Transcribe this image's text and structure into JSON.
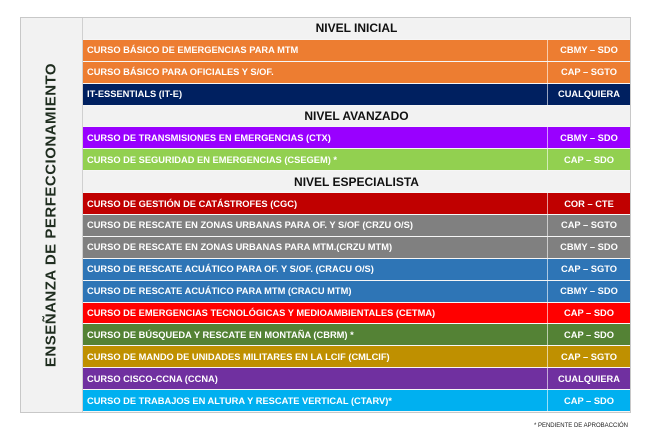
{
  "side_title": "ENSEÑANZA DE PERFECCIONAMIENTO",
  "sections": [
    {
      "title": "NIVEL INICIAL",
      "courses": [
        {
          "name": "CURSO BÁSICO DE EMERGENCIAS PARA MTM",
          "rank": "CBMY – SDO",
          "color": "#ED7D31"
        },
        {
          "name": "CURSO BÁSICO PARA OFICIALES Y S/OF.",
          "rank": "CAP – SGTO",
          "color": "#ED7D31"
        },
        {
          "name": "IT-ESSENTIALS (IT-E)",
          "rank": "CUALQUIERA",
          "color": "#002060"
        }
      ]
    },
    {
      "title": "NIVEL AVANZADO",
      "courses": [
        {
          "name": "CURSO DE TRANSMISIONES EN EMERGENCIAS (CTX)",
          "rank": "CBMY – SDO",
          "color": "#9900FF"
        },
        {
          "name": "CURSO DE SEGURIDAD EN EMERGENCIAS (CSEGEM) *",
          "rank": "CAP – SDO",
          "color": "#92D050"
        }
      ]
    },
    {
      "title": "NIVEL ESPECIALISTA",
      "courses": [
        {
          "name": "CURSO DE GESTIÓN DE CATÁSTROFES (CGC)",
          "rank": "COR – CTE",
          "color": "#C00000"
        },
        {
          "name": "CURSO DE RESCATE EN ZONAS URBANAS PARA OF. Y S/OF (CRZU O/S)",
          "rank": "CAP – SGTO",
          "color": "#808080"
        },
        {
          "name": "CURSO DE RESCATE EN ZONAS URBANAS PARA MTM.(CRZU MTM)",
          "rank": "CBMY – SDO",
          "color": "#808080"
        },
        {
          "name": "CURSO DE RESCATE ACUÁTICO PARA OF. Y S/OF. (CRACU  O/S)",
          "rank": "CAP – SGTO",
          "color": "#2E75B6"
        },
        {
          "name": "CURSO DE RESCATE ACUÁTICO PARA MTM (CRACU  MTM)",
          "rank": "CBMY – SDO",
          "color": "#2E75B6"
        },
        {
          "name": "CURSO DE EMERGENCIAS TECNOLÓGICAS Y MEDIOAMBIENTALES (CETMA)",
          "rank": "CAP – SDO",
          "color": "#FF0000"
        },
        {
          "name": "CURSO DE BÚSQUEDA Y RESCATE EN MONTAÑA (CBRM) *",
          "rank": "CAP – SDO",
          "color": "#548235"
        },
        {
          "name": "CURSO DE MANDO DE UNIDADES MILITARES EN LA LCIF (CMLCIF)",
          "rank": "CAP – SGTO",
          "color": "#BF9000"
        },
        {
          "name": "CURSO CISCO-CCNA (CCNA)",
          "rank": "CUALQUIERA",
          "color": "#7030A0"
        },
        {
          "name": "CURSO DE TRABAJOS EN ALTURA Y RESCATE VERTICAL  (CTARV)*",
          "rank": "CAP – SDO",
          "color": "#00B0F0"
        }
      ]
    }
  ],
  "footnote": "* PENDIENTE DE APROBACCIÓN"
}
